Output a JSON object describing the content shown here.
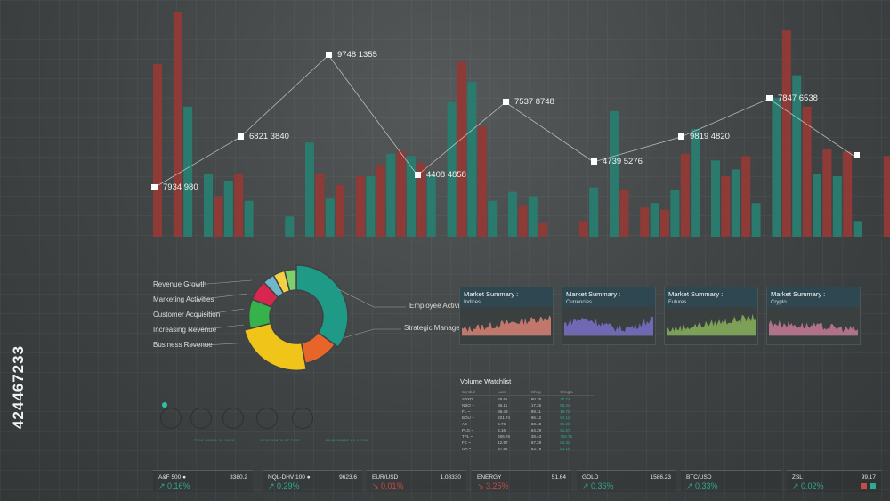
{
  "colors": {
    "teal": "#2b7a6e",
    "red": "#8e3a37",
    "bg": "#3f4344",
    "up": "#2ea992",
    "down": "#c94b45"
  },
  "side_id": "424467233",
  "bar_chart": {
    "values": [
      0.77,
      0.0,
      1.0,
      0.58,
      0.0,
      0.28,
      0.18,
      0.25,
      0.28,
      0.16,
      0.0,
      0.0,
      0.0,
      0.09,
      0.0,
      0.42,
      0.28,
      0.17,
      0.23,
      0.0,
      0.27,
      0.27,
      0.32,
      0.37,
      0.38,
      0.36,
      0.33,
      0.28,
      0.0,
      0.6,
      0.78,
      0.69,
      0.49,
      0.16,
      0.0,
      0.2,
      0.14,
      0.18,
      0.06,
      0.0,
      0.0,
      0.0,
      0.07,
      0.22,
      0.0,
      0.56,
      0.21,
      0.0,
      0.13,
      0.15,
      0.12,
      0.21,
      0.37,
      0.48,
      0.0,
      0.34,
      0.27,
      0.3,
      0.36,
      0.15,
      0.0,
      0.62,
      0.92,
      0.72,
      0.58,
      0.28,
      0.39,
      0.27,
      0.38,
      0.07,
      0.0,
      0.0,
      0.36,
      0.27,
      0.49,
      0.37,
      0.14
    ],
    "series_of": "alternating"
  },
  "data_labels": [
    {
      "text": "7934 980"
    },
    {
      "text": "6821 3840"
    },
    {
      "text": "9748 1355"
    },
    {
      "text": "4408 4858"
    },
    {
      "text": "7537 8748"
    },
    {
      "text": "4739 5276"
    },
    {
      "text": "9819 4820"
    },
    {
      "text": "7847 6538"
    },
    {
      "text": ""
    }
  ],
  "donut": {
    "left_labels": [
      "Revenue Growth",
      "Marketing Activities",
      "Customer Acquisition",
      "Increasing Revenue",
      "Business Revenue"
    ],
    "right_labels": [
      "Employee Activities",
      "Strategic Management"
    ],
    "segments": [
      {
        "value": 35,
        "color": "#1f9a86"
      },
      {
        "value": 12,
        "color": "#e8652a"
      },
      {
        "value": 24,
        "color": "#f0c419"
      },
      {
        "value": 10,
        "color": "#36b24a"
      },
      {
        "value": 7,
        "color": "#d7274f"
      },
      {
        "value": 4,
        "color": "#6fb7c9"
      },
      {
        "value": 4,
        "color": "#f5cf46"
      },
      {
        "value": 4,
        "color": "#7fcf6d"
      }
    ]
  },
  "market_panels": [
    {
      "title": "Market Summary :",
      "subtitle": "Indices",
      "color": "#d98174"
    },
    {
      "title": "Market Summary :",
      "subtitle": "Currencies",
      "color": "#7a70c9"
    },
    {
      "title": "Market Summary :",
      "subtitle": "Futures",
      "color": "#88b25a"
    },
    {
      "title": "Market Summary :",
      "subtitle": "Crypto",
      "color": "#c77a95"
    }
  ],
  "watchlist": {
    "title": "Volume Watchlist",
    "headers": [
      "Symbol",
      "Last",
      "Chng",
      "Chng%"
    ],
    "rows": [
      [
        "SPXD",
        "28.61",
        "90.76",
        "10.74"
      ],
      [
        "NBO ~",
        "86.11",
        "17.26",
        "86.24"
      ],
      [
        "FL ~",
        "86.48",
        "89.11",
        "19.72"
      ],
      [
        "BOU ~",
        "221.74",
        "96.12",
        "64.12"
      ],
      [
        "AE ~",
        "5.76",
        "83.48",
        "86.28"
      ],
      [
        "PLG ~",
        "4.16",
        "64.29",
        "91.67"
      ],
      [
        "TPL ~",
        "406.76",
        "38.43",
        "726.76"
      ],
      [
        "FE ~",
        "12.87",
        "67.28",
        "84.32"
      ],
      [
        "GA ~",
        "87.82",
        "63.78",
        "51.19"
      ]
    ]
  },
  "wheel_captions": [
    "7398 80888 00 5150",
    "0993 80878 07 7037",
    "8048 88888 80 07958"
  ],
  "tickers": [
    {
      "name": "A&F 500 ●",
      "price": "3380.2",
      "change": "0.16%",
      "dir": "up"
    },
    {
      "name": "NQL-DHV 100 ●",
      "price": "9623.6",
      "change": "0.29%",
      "dir": "up"
    },
    {
      "name": "EUR/USD",
      "price": "1.08330",
      "change": "0.01%",
      "dir": "down"
    },
    {
      "name": "ENERGY",
      "price": "51.64",
      "change": "3.25%",
      "dir": "down"
    },
    {
      "name": "GOLD",
      "price": "1586.23",
      "change": "0.36%",
      "dir": "up"
    },
    {
      "name": "BTC/USD",
      "price": "",
      "change": "0.33%",
      "dir": "up"
    },
    {
      "name": "ZSL",
      "price": "99.17",
      "change": "0.02%",
      "dir": "up"
    }
  ]
}
